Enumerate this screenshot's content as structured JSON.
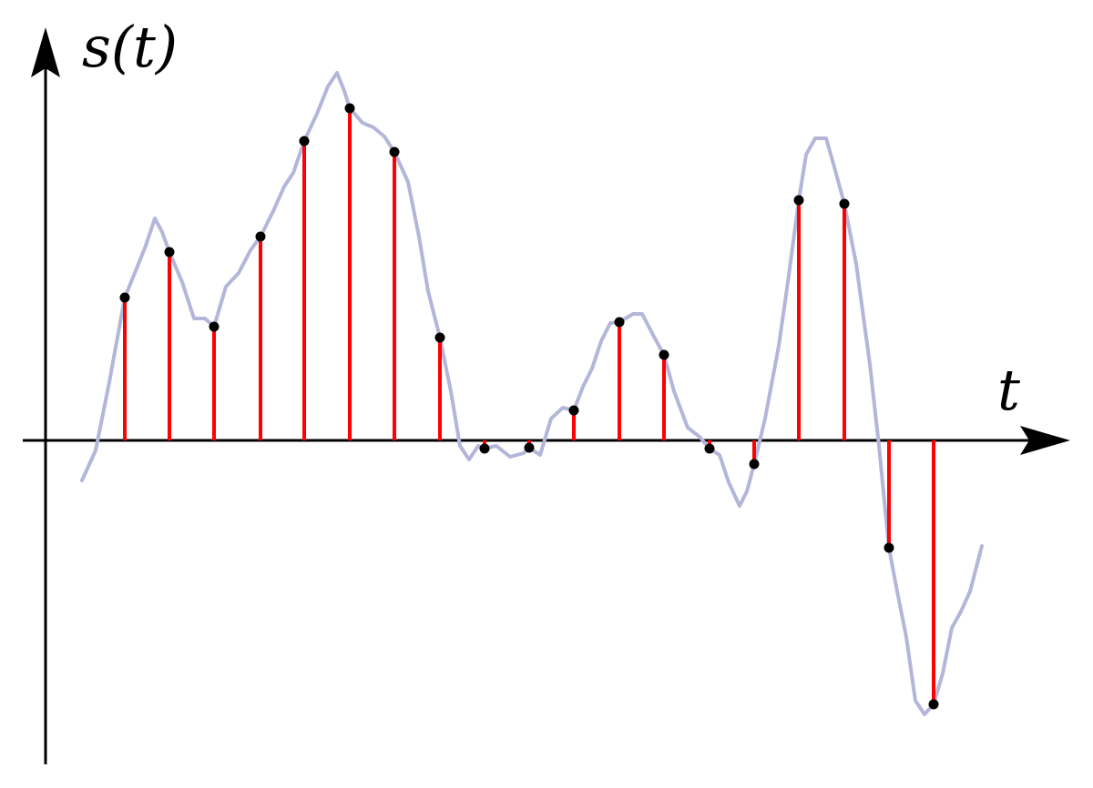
{
  "chart_data": {
    "type": "stem",
    "x_label": "t",
    "y_label": "s(t)",
    "xlim": [
      -0.25,
      11.25
    ],
    "ylim": [
      -3.56,
      4.54
    ],
    "color": "#ff0000",
    "marker_color": "#000000",
    "x": [
      0.87,
      1.36,
      1.85,
      2.36,
      2.84,
      3.34,
      3.83,
      4.33,
      4.82,
      5.31,
      5.8,
      6.3,
      6.79,
      7.29,
      7.78,
      8.27,
      8.77,
      9.26,
      9.75
    ],
    "values": [
      1.57,
      2.07,
      1.25,
      2.24,
      3.29,
      3.65,
      3.17,
      1.13,
      -0.09,
      -0.08,
      0.33,
      1.3,
      0.94,
      -0.09,
      -0.26,
      2.64,
      2.6,
      -1.18,
      -2.9
    ],
    "signal": {
      "color": "#b3b6d9",
      "x": [
        0.4,
        0.55,
        0.7,
        0.87,
        1.0,
        1.1,
        1.2,
        1.28,
        1.36,
        1.5,
        1.63,
        1.75,
        1.85,
        1.98,
        2.12,
        2.25,
        2.36,
        2.5,
        2.62,
        2.72,
        2.84,
        2.98,
        3.1,
        3.2,
        3.28,
        3.34,
        3.48,
        3.6,
        3.72,
        3.83,
        3.98,
        4.1,
        4.2,
        4.33,
        4.45,
        4.55,
        4.65,
        4.75,
        4.82,
        4.95,
        5.1,
        5.25,
        5.31,
        5.43,
        5.55,
        5.68,
        5.8,
        5.9,
        6.0,
        6.1,
        6.2,
        6.3,
        6.45,
        6.55,
        6.68,
        6.79,
        6.9,
        7.05,
        7.18,
        7.29,
        7.4,
        7.5,
        7.62,
        7.7,
        7.78,
        7.9,
        8.05,
        8.15,
        8.27,
        8.35,
        8.45,
        8.57,
        8.65,
        8.77,
        8.9,
        9.05,
        9.15,
        9.26,
        9.35,
        9.45,
        9.55,
        9.65,
        9.75,
        9.85,
        9.95,
        10.05,
        10.15,
        10.28
      ],
      "values": [
        -0.44,
        -0.11,
        0.64,
        1.57,
        1.89,
        2.14,
        2.44,
        2.29,
        2.07,
        1.74,
        1.34,
        1.34,
        1.25,
        1.69,
        1.84,
        2.09,
        2.24,
        2.52,
        2.79,
        2.94,
        3.29,
        3.59,
        3.89,
        4.04,
        3.84,
        3.65,
        3.49,
        3.44,
        3.34,
        3.17,
        2.84,
        2.24,
        1.64,
        1.13,
        0.54,
        -0.06,
        -0.21,
        -0.06,
        -0.09,
        -0.06,
        -0.18,
        -0.14,
        -0.08,
        -0.16,
        0.24,
        0.36,
        0.33,
        0.59,
        0.79,
        1.09,
        1.29,
        1.3,
        1.39,
        1.39,
        1.14,
        0.94,
        0.54,
        0.14,
        0.04,
        -0.09,
        -0.16,
        -0.46,
        -0.72,
        -0.56,
        -0.26,
        0.24,
        1.04,
        1.74,
        2.64,
        3.14,
        3.32,
        3.32,
        3.04,
        2.6,
        1.94,
        0.84,
        -0.06,
        -1.18,
        -1.66,
        -2.16,
        -2.86,
        -3.01,
        -2.9,
        -2.56,
        -2.06,
        -1.88,
        -1.66,
        -1.16
      ]
    }
  }
}
